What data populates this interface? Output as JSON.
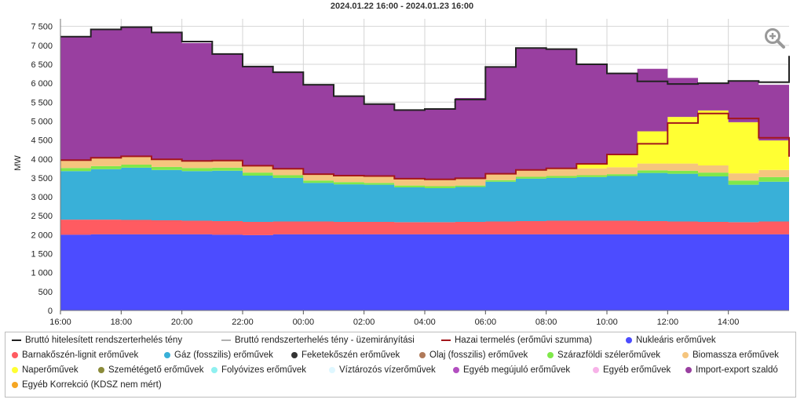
{
  "chart_data": {
    "type": "area",
    "title": "2024.01.22 16:00 - 2024.01.23 16:00",
    "ylabel": "MW",
    "xlabel": "",
    "ylim": [
      0,
      7700
    ],
    "yticks": [
      0,
      500,
      1000,
      1500,
      2000,
      2500,
      3000,
      3500,
      4000,
      4500,
      5000,
      5500,
      6000,
      6500,
      7000,
      7500
    ],
    "ytick_labels": [
      "0",
      "500",
      "1 000",
      "1 500",
      "2 000",
      "2 500",
      "3 000",
      "3 500",
      "4 000",
      "4 500",
      "5 000",
      "5 500",
      "6 000",
      "6 500",
      "7 000",
      "7 500"
    ],
    "xticks": [
      0,
      2,
      4,
      6,
      8,
      10,
      12,
      14,
      16,
      18,
      20,
      22
    ],
    "xtick_labels": [
      "16:00",
      "18:00",
      "20:00",
      "22:00",
      "00:00",
      "02:00",
      "04:00",
      "06:00",
      "08:00",
      "10:00",
      "12:00",
      "14:00"
    ],
    "x_unit": "hours since 2024.01.22 16:00",
    "x": [
      0,
      1,
      2,
      3,
      4,
      5,
      6,
      7,
      8,
      9,
      10,
      11,
      12,
      13,
      14,
      15,
      16,
      17,
      18,
      19,
      20,
      21,
      22,
      23,
      24
    ],
    "stacked_series": [
      {
        "name": "Nukleáris erőművek",
        "color": "#4c4cff",
        "values": [
          2000,
          2010,
          2010,
          2010,
          2010,
          2000,
          1990,
          2010,
          2010,
          2010,
          2010,
          2010,
          2010,
          2010,
          2010,
          2010,
          2010,
          2010,
          2010,
          2010,
          2010,
          2010,
          2010,
          2010,
          2020
        ]
      },
      {
        "name": "Barnakőszén-lignit erőművek",
        "color": "#ff5b61",
        "values": [
          400,
          390,
          380,
          370,
          360,
          360,
          350,
          340,
          340,
          330,
          330,
          320,
          320,
          330,
          340,
          350,
          360,
          360,
          360,
          350,
          340,
          330,
          320,
          340,
          360
        ]
      },
      {
        "name": "Gáz (fosszilis) erőművek",
        "color": "#39b0d8",
        "values": [
          1280,
          1330,
          1380,
          1330,
          1310,
          1330,
          1220,
          1150,
          1020,
          990,
          980,
          920,
          900,
          920,
          1050,
          1120,
          1130,
          1150,
          1180,
          1270,
          1260,
          1200,
          990,
          1050,
          1080
        ]
      },
      {
        "name": "Szárazföldi szélerőművek",
        "color": "#7fe84a",
        "values": [
          80,
          80,
          80,
          80,
          80,
          80,
          80,
          70,
          60,
          60,
          50,
          50,
          50,
          40,
          40,
          50,
          50,
          50,
          50,
          70,
          80,
          100,
          110,
          120,
          120
        ]
      },
      {
        "name": "Biomassza erőművek",
        "color": "#f5c57e",
        "values": [
          210,
          210,
          210,
          200,
          190,
          190,
          180,
          170,
          170,
          170,
          180,
          180,
          180,
          170,
          170,
          180,
          180,
          180,
          180,
          180,
          190,
          190,
          190,
          190,
          190
        ]
      },
      {
        "name": "Naperőművek",
        "color": "#ffff33",
        "values": [
          0,
          0,
          0,
          0,
          0,
          0,
          0,
          0,
          0,
          0,
          0,
          0,
          0,
          0,
          0,
          0,
          20,
          130,
          350,
          850,
          1230,
          1450,
          1350,
          780,
          290
        ]
      },
      {
        "name": "Import-export szaldó",
        "color": "#993fa0",
        "values": [
          3260,
          3390,
          3420,
          3350,
          3110,
          2810,
          2620,
          2550,
          2360,
          2100,
          1900,
          1810,
          1880,
          2140,
          2820,
          3220,
          3150,
          2630,
          2140,
          1650,
          1030,
          730,
          1090,
          1470,
          2660
        ]
      }
    ],
    "line_series": [
      {
        "name": "Bruttó hitelesített rendszerterhelés tény",
        "color": "#222222",
        "values": [
          7230,
          7420,
          7480,
          7340,
          7100,
          6770,
          6440,
          6290,
          5960,
          5660,
          5450,
          5290,
          5320,
          5570,
          6430,
          6930,
          6900,
          6500,
          6260,
          6050,
          5980,
          6000,
          6060,
          6030,
          6720
        ]
      },
      {
        "name": "Hazai termelés (erőművi szumma)",
        "color": "#a3171c",
        "values": [
          3970,
          4030,
          4070,
          3990,
          3950,
          3960,
          3820,
          3740,
          3600,
          3560,
          3550,
          3480,
          3460,
          3490,
          3610,
          3710,
          3750,
          3870,
          4120,
          4400,
          4950,
          5200,
          5070,
          4560,
          4060
        ]
      }
    ],
    "legend": [
      {
        "name": "Bruttó hitelesített rendszerterhelés tény",
        "color": "#222222",
        "symbol": "line"
      },
      {
        "name": "Bruttó rendszerterhelés tény - üzemirányítási",
        "color": "#b0b0b0",
        "symbol": "line"
      },
      {
        "name": "Hazai termelés (erőművi szumma)",
        "color": "#a3171c",
        "symbol": "line"
      },
      {
        "name": "Nukleáris erőművek",
        "color": "#4c4cff",
        "symbol": "dot"
      },
      {
        "name": "Barnakőszén-lignit erőművek",
        "color": "#ff5b61",
        "symbol": "dot"
      },
      {
        "name": "Gáz (fosszilis) erőművek",
        "color": "#39b0d8",
        "symbol": "dot"
      },
      {
        "name": "Feketekőszén erőművek",
        "color": "#333333",
        "symbol": "dot"
      },
      {
        "name": "Olaj (fosszilis) erőművek",
        "color": "#b07a5a",
        "symbol": "dot"
      },
      {
        "name": "Szárazföldi szélerőművek",
        "color": "#7fe84a",
        "symbol": "dot"
      },
      {
        "name": "Biomassza erőművek",
        "color": "#f5c57e",
        "symbol": "dot"
      },
      {
        "name": "Naperőművek",
        "color": "#ffff33",
        "symbol": "dot"
      },
      {
        "name": "Szemétégető erőművek",
        "color": "#8b8b3a",
        "symbol": "dot"
      },
      {
        "name": "Folyóvizes erőművek",
        "color": "#8ff0f0",
        "symbol": "dot"
      },
      {
        "name": "Víztározós vízerőművek",
        "color": "#dff7ff",
        "symbol": "dot"
      },
      {
        "name": "Egyéb megújuló erőművek",
        "color": "#b24fc0",
        "symbol": "dot"
      },
      {
        "name": "Egyéb erőművek",
        "color": "#f7b2e8",
        "symbol": "dot"
      },
      {
        "name": "Import-export szaldó",
        "color": "#993fa0",
        "symbol": "dot"
      },
      {
        "name": "Egyéb Korrekció (KDSZ nem mért)",
        "color": "#f5a623",
        "symbol": "dot"
      }
    ],
    "grid": true,
    "legend_position": "bottom"
  },
  "ui": {
    "zoom_icon": "zoom-in-icon"
  }
}
